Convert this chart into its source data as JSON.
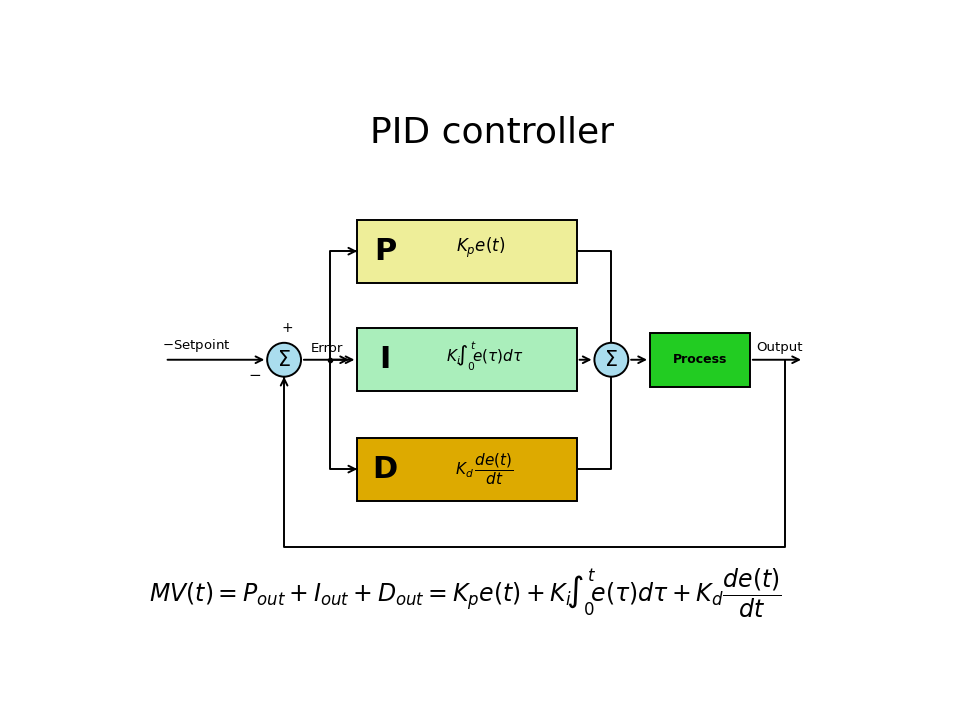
{
  "title": "PID controller",
  "title_fontsize": 26,
  "bg_color": "#ffffff",
  "box_P_color": "#eeee99",
  "box_I_color": "#aaeebb",
  "box_D_color": "#ddaa00",
  "box_process_color": "#22cc22",
  "sum_circle_color": "#aaddee",
  "arrow_color": "#000000",
  "line_color": "#000000",
  "lw": 1.4,
  "sum_r": 0.22,
  "p_label_fontsize": 22,
  "formula_fontsize": 17,
  "label_fontsize": 10,
  "setpoint_text": "$-$Setpoint",
  "error_text": "Error",
  "output_text": "Output",
  "plus_text": "+",
  "minus_text": "$-$",
  "process_text": "Process"
}
